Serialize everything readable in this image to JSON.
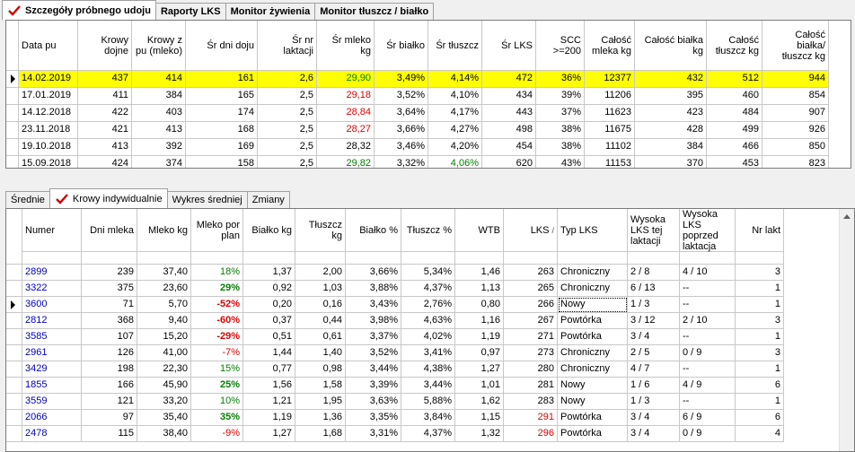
{
  "top_tabs": [
    {
      "label": "Szczegóły próbnego udoju",
      "active": true
    },
    {
      "label": "Raporty LKS",
      "active": false
    },
    {
      "label": "Monitor żywienia",
      "active": false
    },
    {
      "label": "Monitor tłuszcz / białko",
      "active": false
    }
  ],
  "top_grid": {
    "headers": [
      "Data pu",
      "Krowy dojne",
      "Krowy z pu (mleko)",
      "Śr dni doju",
      "Śr nr laktacji",
      "Śr mleko kg",
      "Śr białko",
      "Śr tłuszcz",
      "Śr LKS",
      "SCC >=200",
      "Całość mleka kg",
      "Całość białka kg",
      "Całość tłuszcz kg",
      "Całość białka/ tłuszcz kg"
    ],
    "rows": [
      [
        "14.02.2019",
        "437",
        "414",
        "161",
        "2,6",
        "29,90",
        "3,49%",
        "4,14%",
        "472",
        "36%",
        "12377",
        "432",
        "512",
        "944"
      ],
      [
        "17.01.2019",
        "411",
        "384",
        "165",
        "2,5",
        "29,18",
        "3,52%",
        "4,10%",
        "434",
        "39%",
        "11206",
        "395",
        "460",
        "854"
      ],
      [
        "14.12.2018",
        "422",
        "403",
        "174",
        "2,5",
        "28,84",
        "3,64%",
        "4,17%",
        "443",
        "37%",
        "11623",
        "423",
        "484",
        "907"
      ],
      [
        "23.11.2018",
        "421",
        "413",
        "168",
        "2,5",
        "28,27",
        "3,66%",
        "4,27%",
        "498",
        "38%",
        "11675",
        "428",
        "499",
        "926"
      ],
      [
        "19.10.2018",
        "413",
        "392",
        "169",
        "2,5",
        "28,32",
        "3,46%",
        "4,20%",
        "454",
        "38%",
        "11102",
        "384",
        "466",
        "850"
      ],
      [
        "15.09.2018",
        "424",
        "374",
        "158",
        "2,5",
        "29,82",
        "3,32%",
        "4,06%",
        "620",
        "43%",
        "11153",
        "370",
        "453",
        "823"
      ]
    ],
    "selected_row": 0
  },
  "bottom_tabs": [
    {
      "label": "Średnie",
      "active": false
    },
    {
      "label": "Krowy indywidualnie",
      "active": true
    },
    {
      "label": "Wykres średniej",
      "active": false
    },
    {
      "label": "Zmiany",
      "active": false
    }
  ],
  "bottom_grid": {
    "headers": [
      "Numer",
      "Dni mleka",
      "Mleko kg",
      "Mleko por plan",
      "Białko kg",
      "Tłuszcz kg",
      "Białko %",
      "Tłuszcz %",
      "WTB",
      "LKS",
      "Typ LKS",
      "Wysoka LKS tej laktacji",
      "Wysoka LKS poprzed laktacja",
      "Nr lakt"
    ],
    "sort_column": "LKS",
    "rows": [
      [
        "2899",
        "239",
        "37,40",
        "18%",
        "1,37",
        "2,00",
        "3,66%",
        "5,34%",
        "1,46",
        "263",
        "Chroniczny",
        "2 / 8",
        "4 / 10",
        "3"
      ],
      [
        "3322",
        "375",
        "23,60",
        "29%",
        "0,92",
        "1,03",
        "3,88%",
        "4,37%",
        "1,13",
        "265",
        "Chroniczny",
        "6 / 13",
        "--",
        "1"
      ],
      [
        "3600",
        "71",
        "5,70",
        "-52%",
        "0,20",
        "0,16",
        "3,43%",
        "2,76%",
        "0,80",
        "266",
        "Nowy",
        "1 / 3",
        "--",
        "1"
      ],
      [
        "2812",
        "368",
        "9,40",
        "-60%",
        "0,37",
        "0,44",
        "3,98%",
        "4,63%",
        "1,16",
        "267",
        "Powtórka",
        "3 / 12",
        "2 / 10",
        "3"
      ],
      [
        "3585",
        "107",
        "15,20",
        "-29%",
        "0,51",
        "0,61",
        "3,37%",
        "4,02%",
        "1,19",
        "271",
        "Powtórka",
        "3 / 4",
        "--",
        "1"
      ],
      [
        "2961",
        "126",
        "41,00",
        "-7%",
        "1,44",
        "1,40",
        "3,52%",
        "3,41%",
        "0,97",
        "273",
        "Chroniczny",
        "2 / 5",
        "0 / 9",
        "3"
      ],
      [
        "3429",
        "198",
        "22,30",
        "15%",
        "0,77",
        "0,98",
        "3,44%",
        "4,38%",
        "1,27",
        "280",
        "Chroniczny",
        "4 / 7",
        "--",
        "1"
      ],
      [
        "1855",
        "166",
        "45,90",
        "25%",
        "1,56",
        "1,58",
        "3,39%",
        "3,44%",
        "1,01",
        "281",
        "Nowy",
        "1 / 6",
        "4 / 9",
        "6"
      ],
      [
        "3559",
        "121",
        "33,20",
        "10%",
        "1,21",
        "1,95",
        "3,63%",
        "5,88%",
        "1,62",
        "283",
        "Nowy",
        "1 / 3",
        "--",
        "1"
      ],
      [
        "2066",
        "97",
        "35,40",
        "35%",
        "1,19",
        "1,36",
        "3,35%",
        "3,84%",
        "1,15",
        "291",
        "Powtórka",
        "3 / 4",
        "6 / 9",
        "6"
      ],
      [
        "2478",
        "115",
        "38,40",
        "-9%",
        "1,27",
        "1,68",
        "3,31%",
        "4,37%",
        "1,32",
        "296",
        "Powtórka",
        "3 / 4",
        "0 / 9",
        "4"
      ]
    ],
    "selected_row": 2
  },
  "colors": {
    "selected_row": "#ffff00",
    "red": "#e00000",
    "green": "#008000",
    "blue_link": "#0000c0"
  }
}
